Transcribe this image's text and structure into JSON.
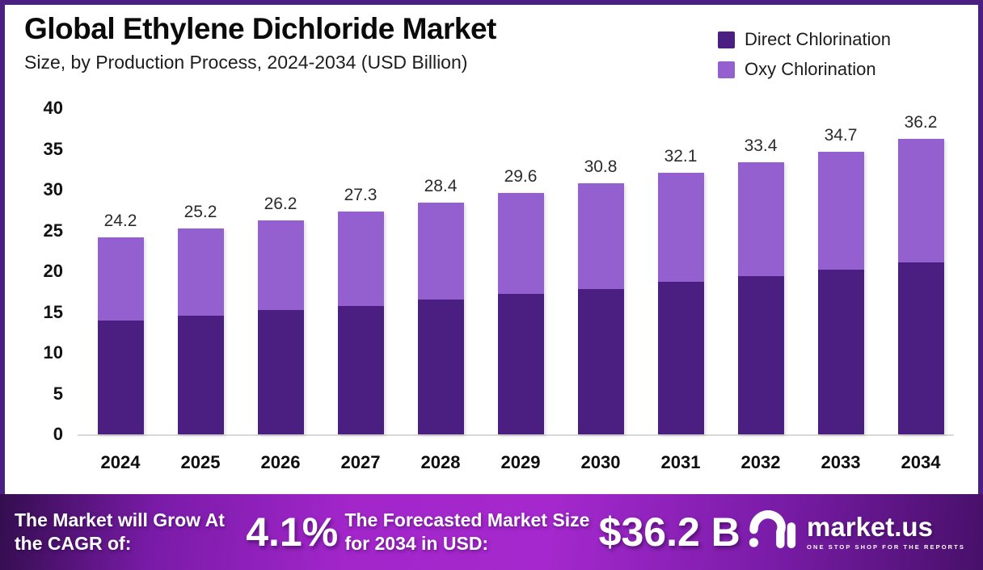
{
  "chart_data": {
    "type": "bar",
    "stacked": true,
    "title": "Global Ethylene Dichloride Market",
    "subtitle": "Size, by Production Process, 2024-2034 (USD Billion)",
    "categories": [
      "2024",
      "2025",
      "2026",
      "2027",
      "2028",
      "2029",
      "2030",
      "2031",
      "2032",
      "2033",
      "2034"
    ],
    "series": [
      {
        "name": "Direct Chlorination",
        "color": "#4b1e82",
        "values": [
          14.0,
          14.6,
          15.2,
          15.7,
          16.5,
          17.2,
          17.8,
          18.7,
          19.4,
          20.2,
          21.1
        ]
      },
      {
        "name": "Oxy Chlorination",
        "color": "#9460cf",
        "values": [
          10.2,
          10.6,
          11.0,
          11.6,
          11.9,
          12.4,
          13.0,
          13.4,
          14.0,
          14.5,
          15.1
        ]
      }
    ],
    "totals_labels": [
      "24.2",
      "25.2",
      "26.2",
      "27.3",
      "28.4",
      "29.6",
      "30.8",
      "32.1",
      "33.4",
      "34.7",
      "36.2"
    ],
    "ylim": [
      0,
      40
    ],
    "yticks": [
      0,
      5,
      10,
      15,
      20,
      25,
      30,
      35,
      40
    ],
    "grid": false,
    "legend_position": "top-right"
  },
  "banner": {
    "cagr_label": "The Market will Grow At the CAGR of:",
    "cagr_value": "4.1%",
    "forecast_label": "The Forecasted Market Size for 2034 in USD:",
    "forecast_value": "$36.2 B",
    "logo_text": "market.us",
    "logo_tagline": "ONE STOP SHOP FOR THE REPORTS"
  },
  "colors": {
    "frame_border": "#4a2080",
    "axis_line": "#d9d9d9",
    "direct_chlorination": "#4b1e82",
    "oxy_chlorination": "#9460cf",
    "banner_gradient_start": "#330d4e",
    "banner_gradient_mid": "#a326cb",
    "banner_gradient_end": "#471069",
    "banner_text": "#ffffff"
  }
}
